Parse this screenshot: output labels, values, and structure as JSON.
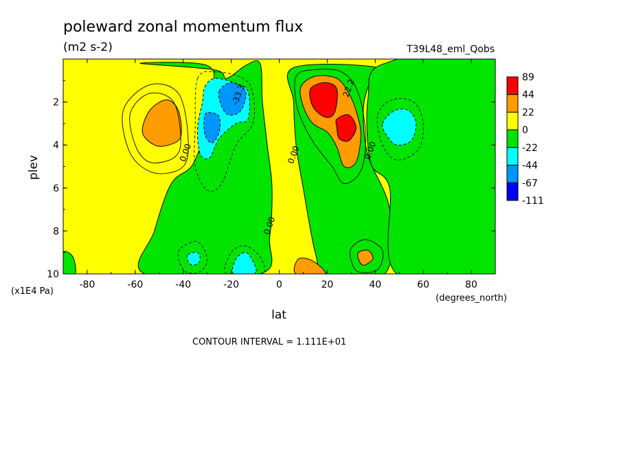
{
  "chart_data": {
    "type": "contour",
    "title": "poleward zonal momentum flux",
    "units": "(m2 s-2)",
    "run_label": "T39L48_eml_Qobs",
    "xlabel": "lat",
    "x_units": "(degrees_north)",
    "ylabel": "plev",
    "y_units": "(x1E4 Pa)",
    "xlim": [
      -90,
      90
    ],
    "ylim": [
      10,
      0
    ],
    "x_ticks": [
      -80,
      -60,
      -40,
      -20,
      0,
      20,
      40,
      60,
      80
    ],
    "x_tick_labels": [
      "-80",
      "-60",
      "-40",
      "-20",
      "0",
      "20",
      "40",
      "60",
      "80"
    ],
    "y_ticks": [
      2,
      4,
      6,
      8,
      10
    ],
    "y_tick_labels": [
      "2",
      "4",
      "6",
      "8",
      "10"
    ],
    "contour_interval_text": "CONTOUR INTERVAL = 1.111E+01",
    "contour_labels": [
      {
        "text": "0.00",
        "lat": -38,
        "plev": 4.4
      },
      {
        "text": "0.00",
        "lat": 7,
        "plev": 4.5
      },
      {
        "text": "0.00",
        "lat": 39,
        "plev": 4.3
      },
      {
        "text": "0.00",
        "lat": -3,
        "plev": 7.8
      },
      {
        "text": "-33.3",
        "lat": -16,
        "plev": 1.7
      },
      {
        "text": "22.2",
        "lat": 30,
        "plev": 1.4
      }
    ],
    "colorbar": {
      "labels": [
        "89",
        "44",
        "22",
        "0",
        "-22",
        "-44",
        "-67",
        "-111"
      ],
      "colors": [
        "#ff0000",
        "#ff9c00",
        "#ffff00",
        "#00e400",
        "#00ffff",
        "#0096ff",
        "#0000ff"
      ]
    },
    "fill_regions": [
      {
        "level": "0",
        "color": "#00e400",
        "points": [
          [
            -58,
            0.2
          ],
          [
            -30,
            0.3
          ],
          [
            -28,
            1.6
          ],
          [
            -30,
            3
          ],
          [
            -36,
            4.9
          ],
          [
            -45,
            5.8
          ],
          [
            -52,
            8
          ],
          [
            -56,
            10
          ],
          [
            -8,
            10
          ],
          [
            -4,
            8.3
          ],
          [
            -3,
            6
          ],
          [
            -5,
            4
          ],
          [
            -7,
            2
          ],
          [
            -8,
            0.2
          ],
          [
            -14,
            0.3
          ],
          [
            -22,
            0.9
          ],
          [
            -27,
            0.5
          ]
        ]
      },
      {
        "level": "0",
        "color": "#00e400",
        "points": [
          [
            -90,
            9.0
          ],
          [
            -86,
            9.2
          ],
          [
            -85,
            10
          ],
          [
            -90,
            10
          ]
        ]
      },
      {
        "level": "0",
        "color": "#00e400",
        "points": [
          [
            6,
            0.4
          ],
          [
            6,
            2
          ],
          [
            7,
            4
          ],
          [
            10,
            6
          ],
          [
            15,
            9
          ],
          [
            20,
            10
          ],
          [
            44,
            10
          ],
          [
            46,
            7
          ],
          [
            37,
            4.5
          ],
          [
            35,
            2.5
          ],
          [
            37,
            1.3
          ],
          [
            41,
            0.4
          ]
        ]
      },
      {
        "level": "0",
        "color": "#00e400",
        "points": [
          [
            44,
            0.2
          ],
          [
            90,
            0.0
          ],
          [
            90,
            10
          ],
          [
            49,
            10
          ],
          [
            46,
            6
          ],
          [
            38,
            4.8
          ],
          [
            37,
            1.8
          ]
        ]
      },
      {
        "level": "22",
        "color": "#ff9c00",
        "points": [
          [
            -54,
            2.4
          ],
          [
            -47,
            1.9
          ],
          [
            -42,
            2.4
          ],
          [
            -41,
            3.6
          ],
          [
            -46,
            4.0
          ],
          [
            -52,
            4.0
          ],
          [
            -57,
            3.4
          ]
        ]
      },
      {
        "level": "22",
        "color": "#ff9c00",
        "points": [
          [
            9,
            1.3
          ],
          [
            15,
            0.8
          ],
          [
            24,
            0.9
          ],
          [
            29,
            1.6
          ],
          [
            32,
            2.4
          ],
          [
            34,
            3.5
          ],
          [
            32,
            4.8
          ],
          [
            27,
            5.0
          ],
          [
            24,
            4.1
          ],
          [
            20,
            3.4
          ],
          [
            14,
            3.0
          ],
          [
            10,
            2.2
          ]
        ]
      },
      {
        "level": "22",
        "color": "#ff9c00",
        "points": [
          [
            7,
            10
          ],
          [
            8,
            9.3
          ],
          [
            14,
            9.4
          ],
          [
            19,
            10
          ]
        ]
      },
      {
        "level": "22",
        "color": "#ff9c00",
        "points": [
          [
            33,
            9.0
          ],
          [
            37,
            8.9
          ],
          [
            39,
            9.3
          ],
          [
            35,
            9.6
          ],
          [
            33,
            9.3
          ]
        ]
      },
      {
        "level": "44",
        "color": "#ff0000",
        "points": [
          [
            13,
            1.4
          ],
          [
            19,
            1.1
          ],
          [
            24,
            1.4
          ],
          [
            23,
            2.5
          ],
          [
            19,
            2.7
          ],
          [
            14,
            2.2
          ]
        ]
      },
      {
        "level": "44",
        "color": "#ff0000",
        "points": [
          [
            24,
            2.8
          ],
          [
            29,
            2.6
          ],
          [
            32,
            3.2
          ],
          [
            29,
            3.8
          ],
          [
            25,
            3.7
          ],
          [
            24,
            3.2
          ]
        ]
      },
      {
        "level": "-22",
        "color": "#00ffff",
        "points": [
          [
            -31,
            1.3
          ],
          [
            -27,
            0.9
          ],
          [
            -19,
            1.1
          ],
          [
            -13,
            1.5
          ],
          [
            -13,
            2.8
          ],
          [
            -18,
            3.0
          ],
          [
            -25,
            3.7
          ],
          [
            -29,
            4.6
          ],
          [
            -33,
            4.4
          ],
          [
            -34,
            3.2
          ],
          [
            -32,
            2.0
          ]
        ]
      },
      {
        "level": "-22",
        "color": "#00ffff",
        "points": [
          [
            43,
            3.0
          ],
          [
            48,
            2.4
          ],
          [
            54,
            2.4
          ],
          [
            57,
            3.0
          ],
          [
            55,
            3.8
          ],
          [
            49,
            4.0
          ],
          [
            45,
            3.6
          ]
        ]
      },
      {
        "level": "-22",
        "color": "#00ffff",
        "points": [
          [
            -19,
            10
          ],
          [
            -18,
            9.3
          ],
          [
            -14,
            9.0
          ],
          [
            -11,
            9.4
          ],
          [
            -10,
            10
          ]
        ]
      },
      {
        "level": "-22",
        "color": "#00ffff",
        "points": [
          [
            -38,
            9.1
          ],
          [
            -34,
            9.0
          ],
          [
            -33,
            9.4
          ],
          [
            -36,
            9.6
          ],
          [
            -38,
            9.4
          ]
        ]
      },
      {
        "level": "-44",
        "color": "#0096ff",
        "points": [
          [
            -31,
            2.6
          ],
          [
            -28,
            2.5
          ],
          [
            -25,
            2.7
          ],
          [
            -25,
            3.4
          ],
          [
            -28,
            3.9
          ],
          [
            -31,
            3.5
          ]
        ]
      },
      {
        "level": "-44",
        "color": "#0096ff",
        "points": [
          [
            -25,
            1.5
          ],
          [
            -20,
            1.1
          ],
          [
            -14,
            1.5
          ],
          [
            -16,
            2.4
          ],
          [
            -21,
            2.6
          ],
          [
            -24,
            2.2
          ]
        ]
      }
    ],
    "line_regions": [
      {
        "style": "solid",
        "points": [
          [
            -65,
            2.4
          ],
          [
            -54,
            1.2
          ],
          [
            -42,
            1.6
          ],
          [
            -38,
            3.6
          ],
          [
            -40,
            5.0
          ],
          [
            -52,
            5.3
          ],
          [
            -62,
            4.4
          ]
        ]
      },
      {
        "style": "solid",
        "points": [
          [
            -62,
            2.5
          ],
          [
            -54,
            1.6
          ],
          [
            -44,
            2.0
          ],
          [
            -41,
            3.8
          ],
          [
            -44,
            4.6
          ],
          [
            -54,
            4.8
          ],
          [
            -60,
            4.0
          ]
        ]
      },
      {
        "style": "dashed",
        "points": [
          [
            -34,
            0.9
          ],
          [
            -26,
            0.6
          ],
          [
            -15,
            0.9
          ],
          [
            -11,
            1.6
          ],
          [
            -11,
            3.0
          ],
          [
            -18,
            4.0
          ],
          [
            -24,
            5.8
          ],
          [
            -30,
            6.1
          ],
          [
            -35,
            5.0
          ],
          [
            -35,
            3.2
          ]
        ]
      },
      {
        "style": "solid",
        "points": [
          [
            7,
            0.8
          ],
          [
            14,
            0.5
          ],
          [
            26,
            0.6
          ],
          [
            33,
            1.6
          ],
          [
            36,
            3.6
          ],
          [
            34,
            5.2
          ],
          [
            27,
            5.8
          ],
          [
            22,
            5.0
          ],
          [
            15,
            4.0
          ],
          [
            10,
            3.0
          ],
          [
            7,
            2.0
          ]
        ]
      },
      {
        "style": "dashed",
        "points": [
          [
            41,
            2.6
          ],
          [
            47,
            1.9
          ],
          [
            56,
            2.0
          ],
          [
            60,
            3.0
          ],
          [
            58,
            4.2
          ],
          [
            49,
            4.7
          ],
          [
            43,
            4.0
          ]
        ]
      },
      {
        "style": "dashed",
        "points": [
          [
            -41,
            8.8
          ],
          [
            -34,
            8.5
          ],
          [
            -30,
            9.3
          ],
          [
            -33,
            9.9
          ],
          [
            -39,
            9.9
          ],
          [
            -42,
            9.3
          ]
        ]
      },
      {
        "style": "solid",
        "points": [
          [
            30,
            8.8
          ],
          [
            36,
            8.4
          ],
          [
            43,
            8.9
          ],
          [
            41,
            9.8
          ],
          [
            33,
            9.9
          ],
          [
            30,
            9.4
          ]
        ]
      },
      {
        "style": "dashed",
        "points": [
          [
            -22,
            10
          ],
          [
            -20,
            9.0
          ],
          [
            -14,
            8.7
          ],
          [
            -8,
            9.2
          ],
          [
            -7,
            10
          ]
        ]
      }
    ]
  }
}
